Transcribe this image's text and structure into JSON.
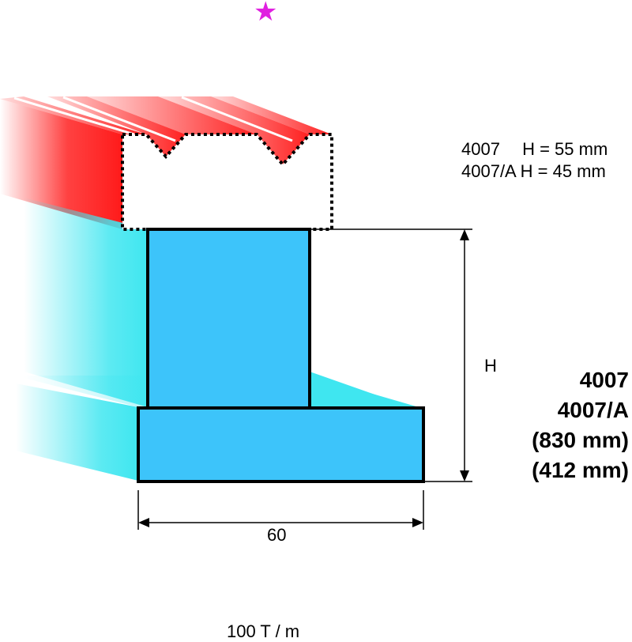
{
  "marker": {
    "icon": "star-icon",
    "color": "#e020e0"
  },
  "specs": [
    {
      "code": "4007",
      "value": "H = 55 mm"
    },
    {
      "code": "4007/A",
      "value": "H = 45 mm"
    }
  ],
  "dimensions": {
    "height_label": "H",
    "width_label": "60"
  },
  "models": {
    "primary": "4007",
    "secondary": "4007/A",
    "height_primary": "(830 mm)",
    "height_secondary": "(412 mm)"
  },
  "capacity": "100 T / m",
  "colors": {
    "die_red": "#ff2020",
    "body_blue": "#3dc4fa",
    "body_cyan": "#3fe6f0",
    "outline": "#000000"
  }
}
